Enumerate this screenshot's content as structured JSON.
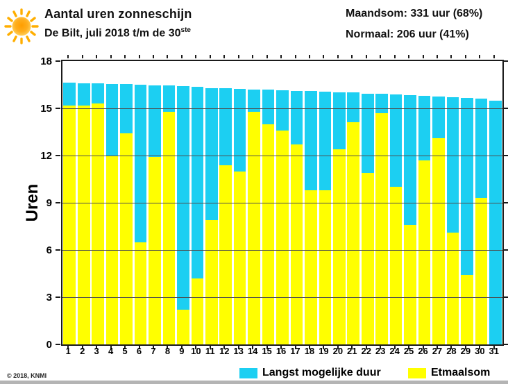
{
  "header": {
    "title": "Aantal uren zonneschijn",
    "subtitle_prefix": "De Bilt, juli 2018 t/m de 30",
    "subtitle_sup": "ste",
    "maandsom": "Maandsom: 331 uur (68%)",
    "normaal": "Normaal: 206 uur (41%)"
  },
  "chart_data": {
    "type": "bar",
    "title": "Aantal uren zonneschijn",
    "subtitle": "De Bilt, juli 2018 t/m de 30ste",
    "xlabel": "",
    "ylabel": "Uren",
    "ylim": [
      0,
      18
    ],
    "yticks": [
      0,
      3,
      6,
      9,
      12,
      15,
      18
    ],
    "grid": "horizontal",
    "legend_position": "bottom",
    "categories": [
      1,
      2,
      3,
      4,
      5,
      6,
      7,
      8,
      9,
      10,
      11,
      12,
      13,
      14,
      15,
      16,
      17,
      18,
      19,
      20,
      21,
      22,
      23,
      24,
      25,
      26,
      27,
      28,
      29,
      30,
      31
    ],
    "series": [
      {
        "name": "Langst mogelijke duur",
        "color": "#1CCFF2",
        "values": [
          16.65,
          16.6,
          16.6,
          16.55,
          16.55,
          16.5,
          16.45,
          16.45,
          16.4,
          16.35,
          16.3,
          16.3,
          16.25,
          16.2,
          16.2,
          16.15,
          16.1,
          16.1,
          16.05,
          16.0,
          16.0,
          15.95,
          15.95,
          15.9,
          15.85,
          15.8,
          15.75,
          15.7,
          15.65,
          15.6,
          15.5
        ]
      },
      {
        "name": "Etmaalsom",
        "color": "#FFFF00",
        "values": [
          15.2,
          15.2,
          15.3,
          12.0,
          13.4,
          6.5,
          11.9,
          14.8,
          2.2,
          4.2,
          7.9,
          11.4,
          11.0,
          14.8,
          14.0,
          13.6,
          12.7,
          9.8,
          9.8,
          12.4,
          14.1,
          10.9,
          14.7,
          10.0,
          7.6,
          11.7,
          13.1,
          7.1,
          4.4,
          9.3,
          null
        ]
      }
    ]
  },
  "legend": {
    "items": [
      {
        "label": "Langst mogelijke duur",
        "color": "#1CCFF2"
      },
      {
        "label": "Etmaalsom",
        "color": "#FFFF00"
      }
    ]
  },
  "footer": {
    "copyright": "© 2018, KNMI"
  },
  "icons": {
    "sun": "sun-icon"
  },
  "colors": {
    "bar_duration": "#1CCFF2",
    "bar_etmaalsom": "#FFFF00",
    "gridline": "#4d4d4d",
    "axis": "#1a1a1a",
    "sun_core": "#FFA519",
    "sun_ray": "#FFB300"
  }
}
